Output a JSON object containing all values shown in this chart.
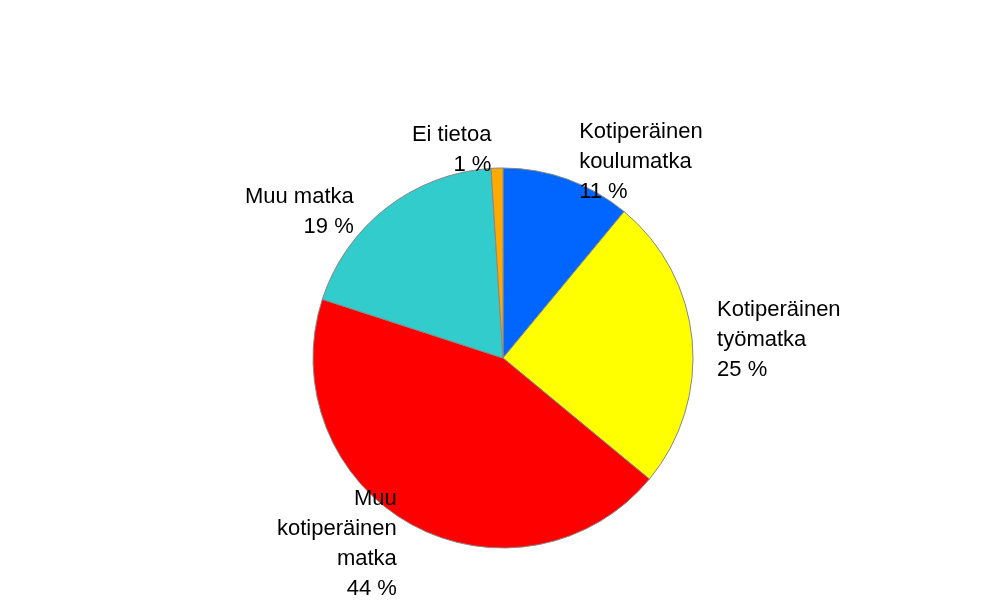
{
  "chart_data": {
    "type": "pie",
    "categories": [
      "Kotiperäinen\nkoulumatka",
      "Kotiperäinen\ntyömatka",
      "Muu\nkotiperäinen\nmatka",
      "Muu matka",
      "Ei tietoa"
    ],
    "values": [
      11,
      25,
      44,
      19,
      1
    ],
    "value_labels": [
      "11 %",
      "25 %",
      "44 %",
      "19 %",
      "1 %"
    ],
    "colors": [
      "#0066ff",
      "#ffff00",
      "#ff0000",
      "#33cccc",
      "#ffaa00"
    ],
    "legend": false
  }
}
